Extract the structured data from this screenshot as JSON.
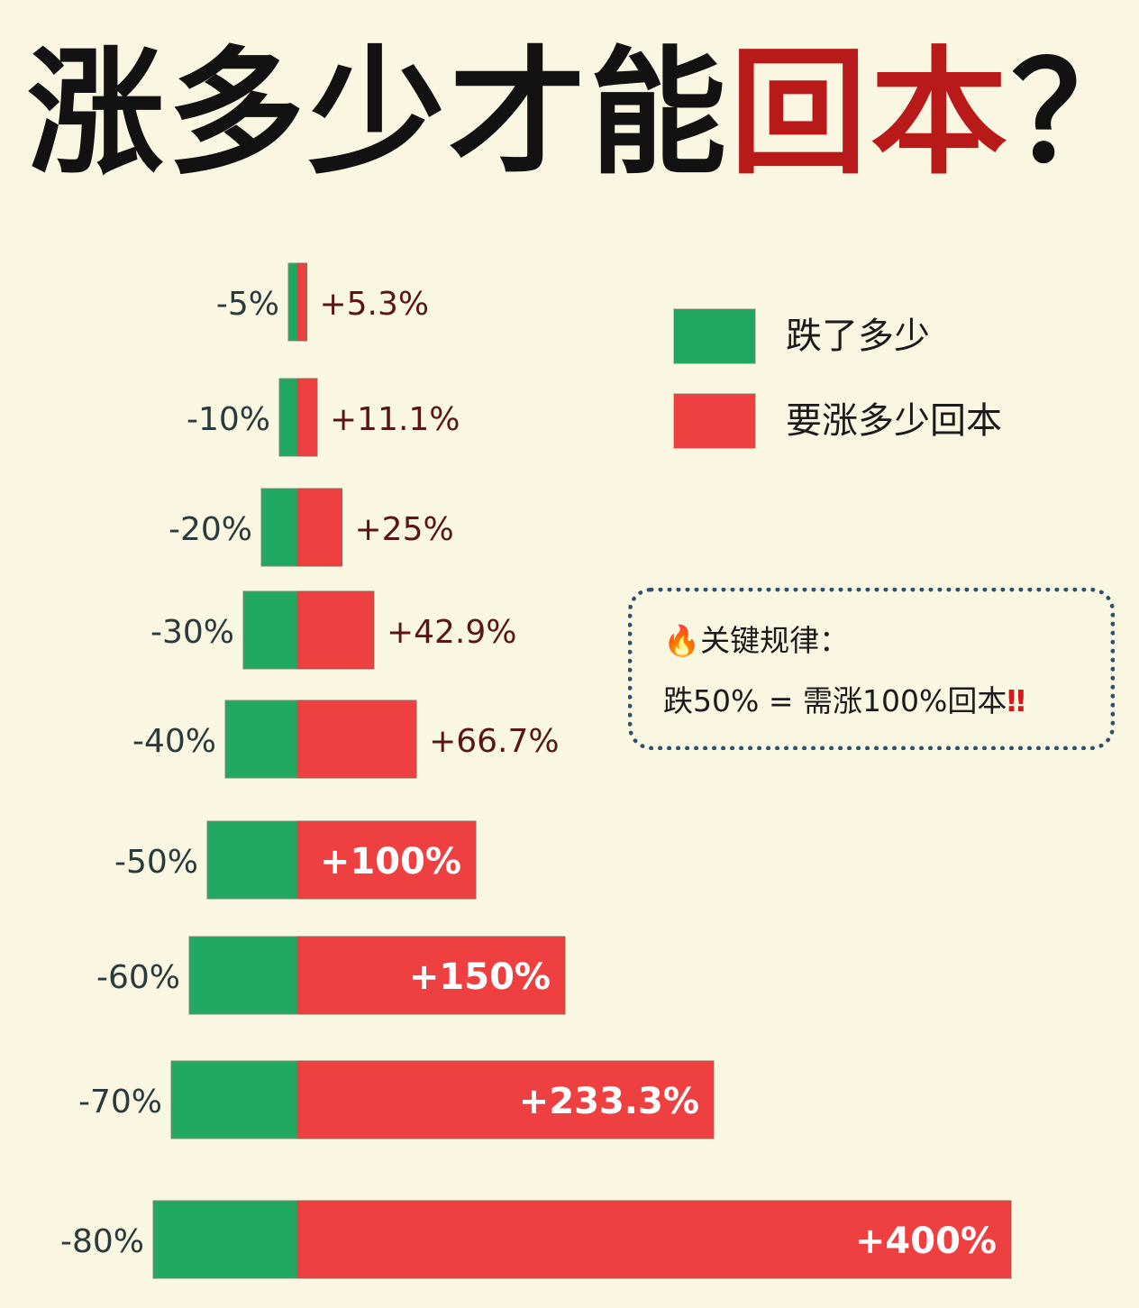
{
  "title": {
    "main": "涨多少才能",
    "accent": "回本",
    "tail": "？"
  },
  "colors": {
    "loss": "#20a860",
    "recover": "#ee4040",
    "label_loss": "#2b3a3a",
    "label_recover": "#5a1616",
    "accent": "#b81a1a"
  },
  "legend": [
    {
      "label": "跌了多少",
      "color": "#20a860"
    },
    {
      "label": "要涨多少回本",
      "color": "#ee4040"
    }
  ],
  "rule": {
    "icon": "fire-icon",
    "emoji": "🔥",
    "title": "关键规律：",
    "text": "跌50% = 需涨100%回本",
    "mark": "‼"
  },
  "chart_data": {
    "type": "bar",
    "orientation": "horizontal",
    "title": "涨多少才能回本？",
    "series": [
      {
        "name": "跌了多少",
        "values": [
          -5,
          -10,
          -20,
          -30,
          -40,
          -50,
          -60,
          -70,
          -80
        ],
        "labels": [
          "-5%",
          "-10%",
          "-20%",
          "-30%",
          "-40%",
          "-50%",
          "-60%",
          "-70%",
          "-80%"
        ]
      },
      {
        "name": "要涨多少回本",
        "values": [
          5.3,
          11.1,
          25,
          42.9,
          66.7,
          100,
          150,
          233.3,
          400
        ],
        "labels": [
          "+5.3%",
          "+11.1%",
          "+25%",
          "+42.9%",
          "+66.7%",
          "+100%",
          "+150%",
          "+233.3%",
          "+400%"
        ]
      }
    ],
    "legend_position": "top-right",
    "grid": false
  }
}
